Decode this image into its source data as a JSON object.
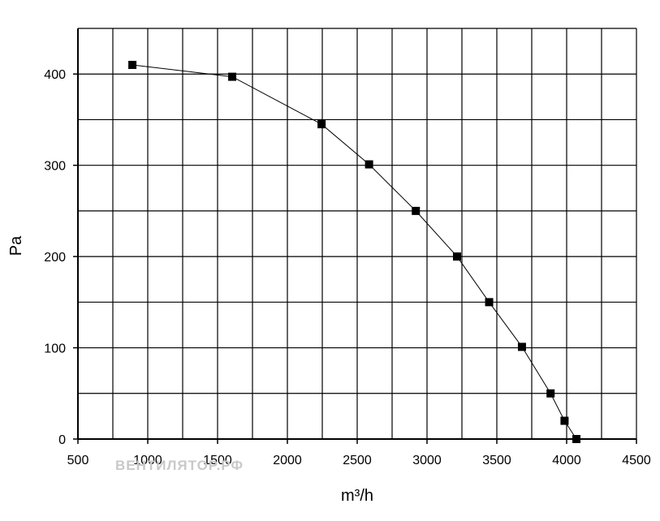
{
  "chart_data": {
    "type": "line",
    "title": "",
    "xlabel": "m³/h",
    "ylabel": "Pa",
    "xlim": [
      500,
      4500
    ],
    "ylim": [
      0,
      450
    ],
    "x_ticks": [
      500,
      1000,
      1500,
      2000,
      2500,
      3000,
      3500,
      4000,
      4500
    ],
    "y_ticks": [
      0,
      100,
      200,
      300,
      400
    ],
    "x_grid_step": 250,
    "y_grid_step": 50,
    "grid": true,
    "legend": "none",
    "marker": "square",
    "line_color": "#000000",
    "series": [
      {
        "x": [
          890,
          1605,
          2245,
          2585,
          2920,
          3215,
          3445,
          3680,
          3885,
          3985,
          4070
        ],
        "y": [
          410,
          397,
          345,
          301,
          250,
          200,
          150,
          101,
          50,
          20,
          0
        ]
      }
    ]
  },
  "watermark": "ВЕНТИЛЯТОР.РФ"
}
